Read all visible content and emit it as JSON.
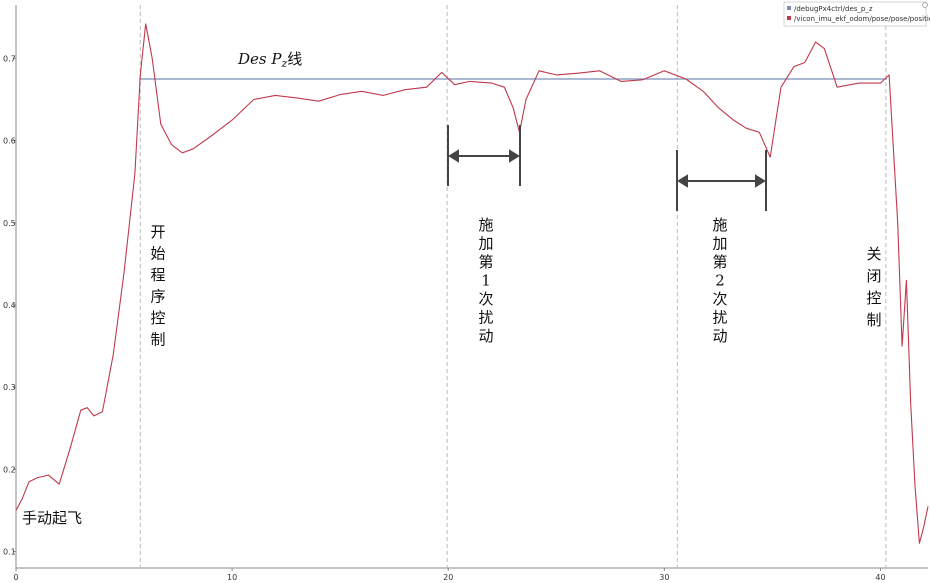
{
  "chart_data": {
    "type": "line",
    "xlim": [
      0,
      42.2
    ],
    "ylim": [
      0.08,
      0.765
    ],
    "x_ticks": [
      0,
      10,
      20,
      30,
      40
    ],
    "y_ticks": [
      0.1,
      0.2,
      0.3,
      0.4,
      0.5,
      0.6,
      0.7
    ],
    "grid": false,
    "legend_placement": "top-right",
    "series": [
      {
        "name": "/debugPx4ctrl/des_p_z",
        "color": "#7a8fb8",
        "x": [
          5.7,
          40.3
        ],
        "y": [
          0.675,
          0.675
        ]
      },
      {
        "name": "/vicon_imu_ekf_odom/pose/pose/position/z",
        "color": "#c0394b",
        "x": [
          0,
          0.3,
          0.6,
          1.0,
          1.5,
          2.0,
          2.5,
          3.0,
          3.3,
          3.6,
          4.0,
          4.5,
          5.0,
          5.5,
          5.75,
          6.0,
          6.3,
          6.7,
          7.2,
          7.7,
          8.2,
          9.0,
          10.0,
          11.0,
          12.0,
          13.0,
          14.0,
          15.0,
          16.0,
          17.0,
          18.0,
          19.0,
          19.7,
          20.3,
          21.0,
          22.0,
          22.6,
          23.0,
          23.3,
          23.6,
          24.2,
          25.0,
          26.0,
          27.0,
          28.0,
          29.0,
          30.0,
          31.0,
          31.8,
          32.5,
          33.2,
          33.8,
          34.4,
          34.9,
          35.4,
          36.0,
          36.5,
          37.0,
          37.4,
          38.0,
          39.0,
          40.0,
          40.4,
          40.8,
          41.0,
          41.2,
          41.4,
          41.6,
          41.8,
          42.0,
          42.2
        ],
        "y": [
          0.15,
          0.165,
          0.185,
          0.19,
          0.193,
          0.182,
          0.225,
          0.272,
          0.275,
          0.265,
          0.27,
          0.34,
          0.44,
          0.56,
          0.68,
          0.742,
          0.7,
          0.62,
          0.595,
          0.585,
          0.59,
          0.605,
          0.625,
          0.65,
          0.655,
          0.652,
          0.648,
          0.656,
          0.66,
          0.655,
          0.662,
          0.665,
          0.683,
          0.668,
          0.672,
          0.67,
          0.665,
          0.64,
          0.61,
          0.65,
          0.685,
          0.68,
          0.682,
          0.685,
          0.672,
          0.674,
          0.685,
          0.675,
          0.66,
          0.64,
          0.625,
          0.615,
          0.61,
          0.58,
          0.665,
          0.69,
          0.695,
          0.72,
          0.712,
          0.665,
          0.67,
          0.67,
          0.68,
          0.5,
          0.35,
          0.43,
          0.28,
          0.18,
          0.11,
          0.13,
          0.155
        ]
      }
    ],
    "vlines_x": [
      5.75,
      19.95,
      30.6,
      40.25
    ]
  },
  "annotations": {
    "des_line_prefix": "Des ",
    "des_line_p": "P",
    "des_line_sub": "z",
    "des_line_suffix": "线",
    "manual_takeoff": "手动起飞",
    "start_program": [
      "开",
      "始",
      "程",
      "序",
      "控",
      "制"
    ],
    "disturbance_1": [
      "施",
      "加",
      "第",
      "1",
      "次",
      "扰",
      "动"
    ],
    "disturbance_2": [
      "施",
      "加",
      "第",
      "2",
      "次",
      "扰",
      "动"
    ],
    "close_control": [
      "关",
      "闭",
      "控",
      "制"
    ]
  }
}
